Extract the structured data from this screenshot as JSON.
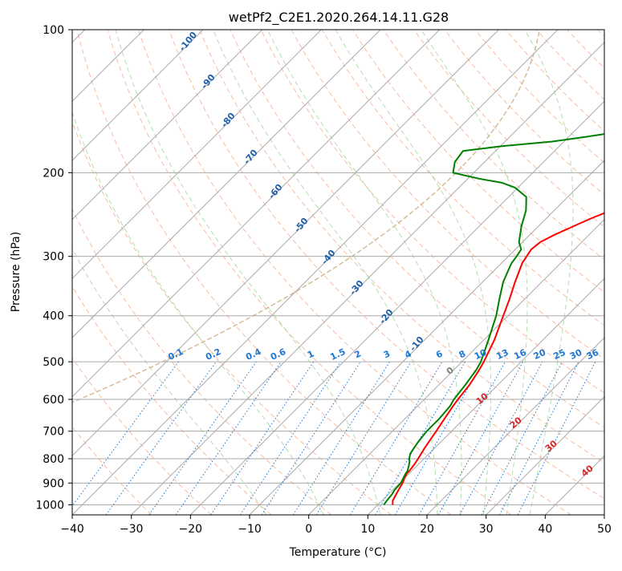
{
  "chart_data": {
    "type": "skew-t",
    "title": "wetPf2_C2E1.2020.264.14.11.G28",
    "xlabel": "Temperature (°C)",
    "ylabel": "Pressure (hPa)",
    "xlim": [
      -40,
      50
    ],
    "ylim": [
      1050,
      100
    ],
    "y_scale": "log",
    "grid": true,
    "x_ticks": [
      -40,
      -30,
      -20,
      -10,
      0,
      10,
      20,
      30,
      40,
      50
    ],
    "x_tick_labels": [
      "−40",
      "−30",
      "−20",
      "−10",
      "0",
      "10",
      "20",
      "30",
      "40",
      "50"
    ],
    "y_ticks": [
      1000,
      900,
      800,
      700,
      600,
      500,
      400,
      300,
      200,
      100
    ],
    "y_tick_labels": [
      "1000",
      "900",
      "800",
      "700",
      "600",
      "500",
      "400",
      "300",
      "200",
      "100"
    ],
    "series": [
      {
        "color": "#ff0000",
        "pressure": [
          1000,
          980,
          950,
          920,
          900,
          880,
          860,
          850,
          820,
          800,
          760,
          720,
          700,
          660,
          620,
          600,
          560,
          520,
          500,
          450,
          400,
          370,
          340,
          310,
          290,
          280,
          270,
          260,
          250,
          240,
          230,
          220,
          210,
          200,
          190,
          180,
          170,
          160,
          150,
          140,
          130,
          120,
          110,
          100
        ],
        "values": [
          12.5,
          11.8,
          11.3,
          10.8,
          10.5,
          10.0,
          9.6,
          9.6,
          9.3,
          9.0,
          8.3,
          7.7,
          7.4,
          6.7,
          6.0,
          5.7,
          5.2,
          4.3,
          3.7,
          1.8,
          -0.8,
          -2.5,
          -4.5,
          -6.5,
          -7.3,
          -7.0,
          -5.8,
          -4.2,
          -2.5,
          -0.4,
          2.5,
          6.0,
          10.5,
          14.5,
          18.0,
          20.0,
          21.5,
          23.5,
          25.5,
          28.0,
          31.5,
          36.0,
          40.5,
          45.0
        ]
      },
      {
        "color": "#008000",
        "pressure": [
          1000,
          980,
          950,
          930,
          900,
          880,
          860,
          850,
          830,
          810,
          800,
          780,
          760,
          740,
          720,
          700,
          660,
          620,
          600,
          560,
          520,
          500,
          450,
          400,
          370,
          340,
          320,
          310,
          300,
          290,
          280,
          260,
          240,
          225,
          215,
          210,
          206,
          200,
          190,
          180,
          176,
          172,
          168,
          165,
          162,
          158,
          154,
          150,
          146,
          142,
          138,
          130,
          120,
          110,
          100
        ],
        "values": [
          11.0,
          10.8,
          10.6,
          10.3,
          10.2,
          9.8,
          9.4,
          9.3,
          8.7,
          8.0,
          7.5,
          6.8,
          6.5,
          6.2,
          6.0,
          5.8,
          5.8,
          5.5,
          5.0,
          4.5,
          3.8,
          3.2,
          0.8,
          -2.0,
          -4.2,
          -6.5,
          -7.7,
          -8.3,
          -8.6,
          -9.0,
          -10.6,
          -12.8,
          -14.8,
          -17.0,
          -20.5,
          -23.5,
          -28.0,
          -33.5,
          -35.0,
          -35.5,
          -30.0,
          -22.0,
          -17.0,
          -13.5,
          -12.5,
          -12.8,
          -14.5,
          -17.0,
          -17.7,
          -18.0,
          -18.0,
          -18.5,
          -20.0,
          -20.8,
          -21.5
        ]
      }
    ],
    "isotherm_spacing": 10,
    "dry_adiabat_labels": [],
    "moist_adiabat_labels": [
      -100,
      -90,
      -80,
      -70,
      -60,
      -50,
      -40,
      -30,
      -20,
      -10
    ],
    "mixing_ratio_labels": [
      "0.1",
      "0.2",
      "0.4",
      "0.6",
      "1",
      "1.5",
      "2",
      "3",
      "4",
      "6",
      "8",
      "10",
      "13",
      "16",
      "20",
      "25",
      "30",
      "36"
    ],
    "mixing_ratio_values": [
      0.1,
      0.2,
      0.4,
      0.6,
      1,
      1.5,
      2,
      3,
      4,
      6,
      8,
      10,
      13,
      16,
      20,
      25,
      30,
      36
    ],
    "theta_labels": [
      0,
      10,
      20,
      30,
      40
    ],
    "colors": {
      "isotherm": "#aaaaaa",
      "isobar": "#aaaaaa",
      "dry_adiabat": "#f4a582",
      "moist_adiabat": "#a6d8a0",
      "mixing_ratio": "#1f77d4",
      "moist_label": "#1f5faa",
      "theta_label": "#d62728",
      "zero_label": "#808080",
      "boundary": "#d2b48c"
    }
  }
}
